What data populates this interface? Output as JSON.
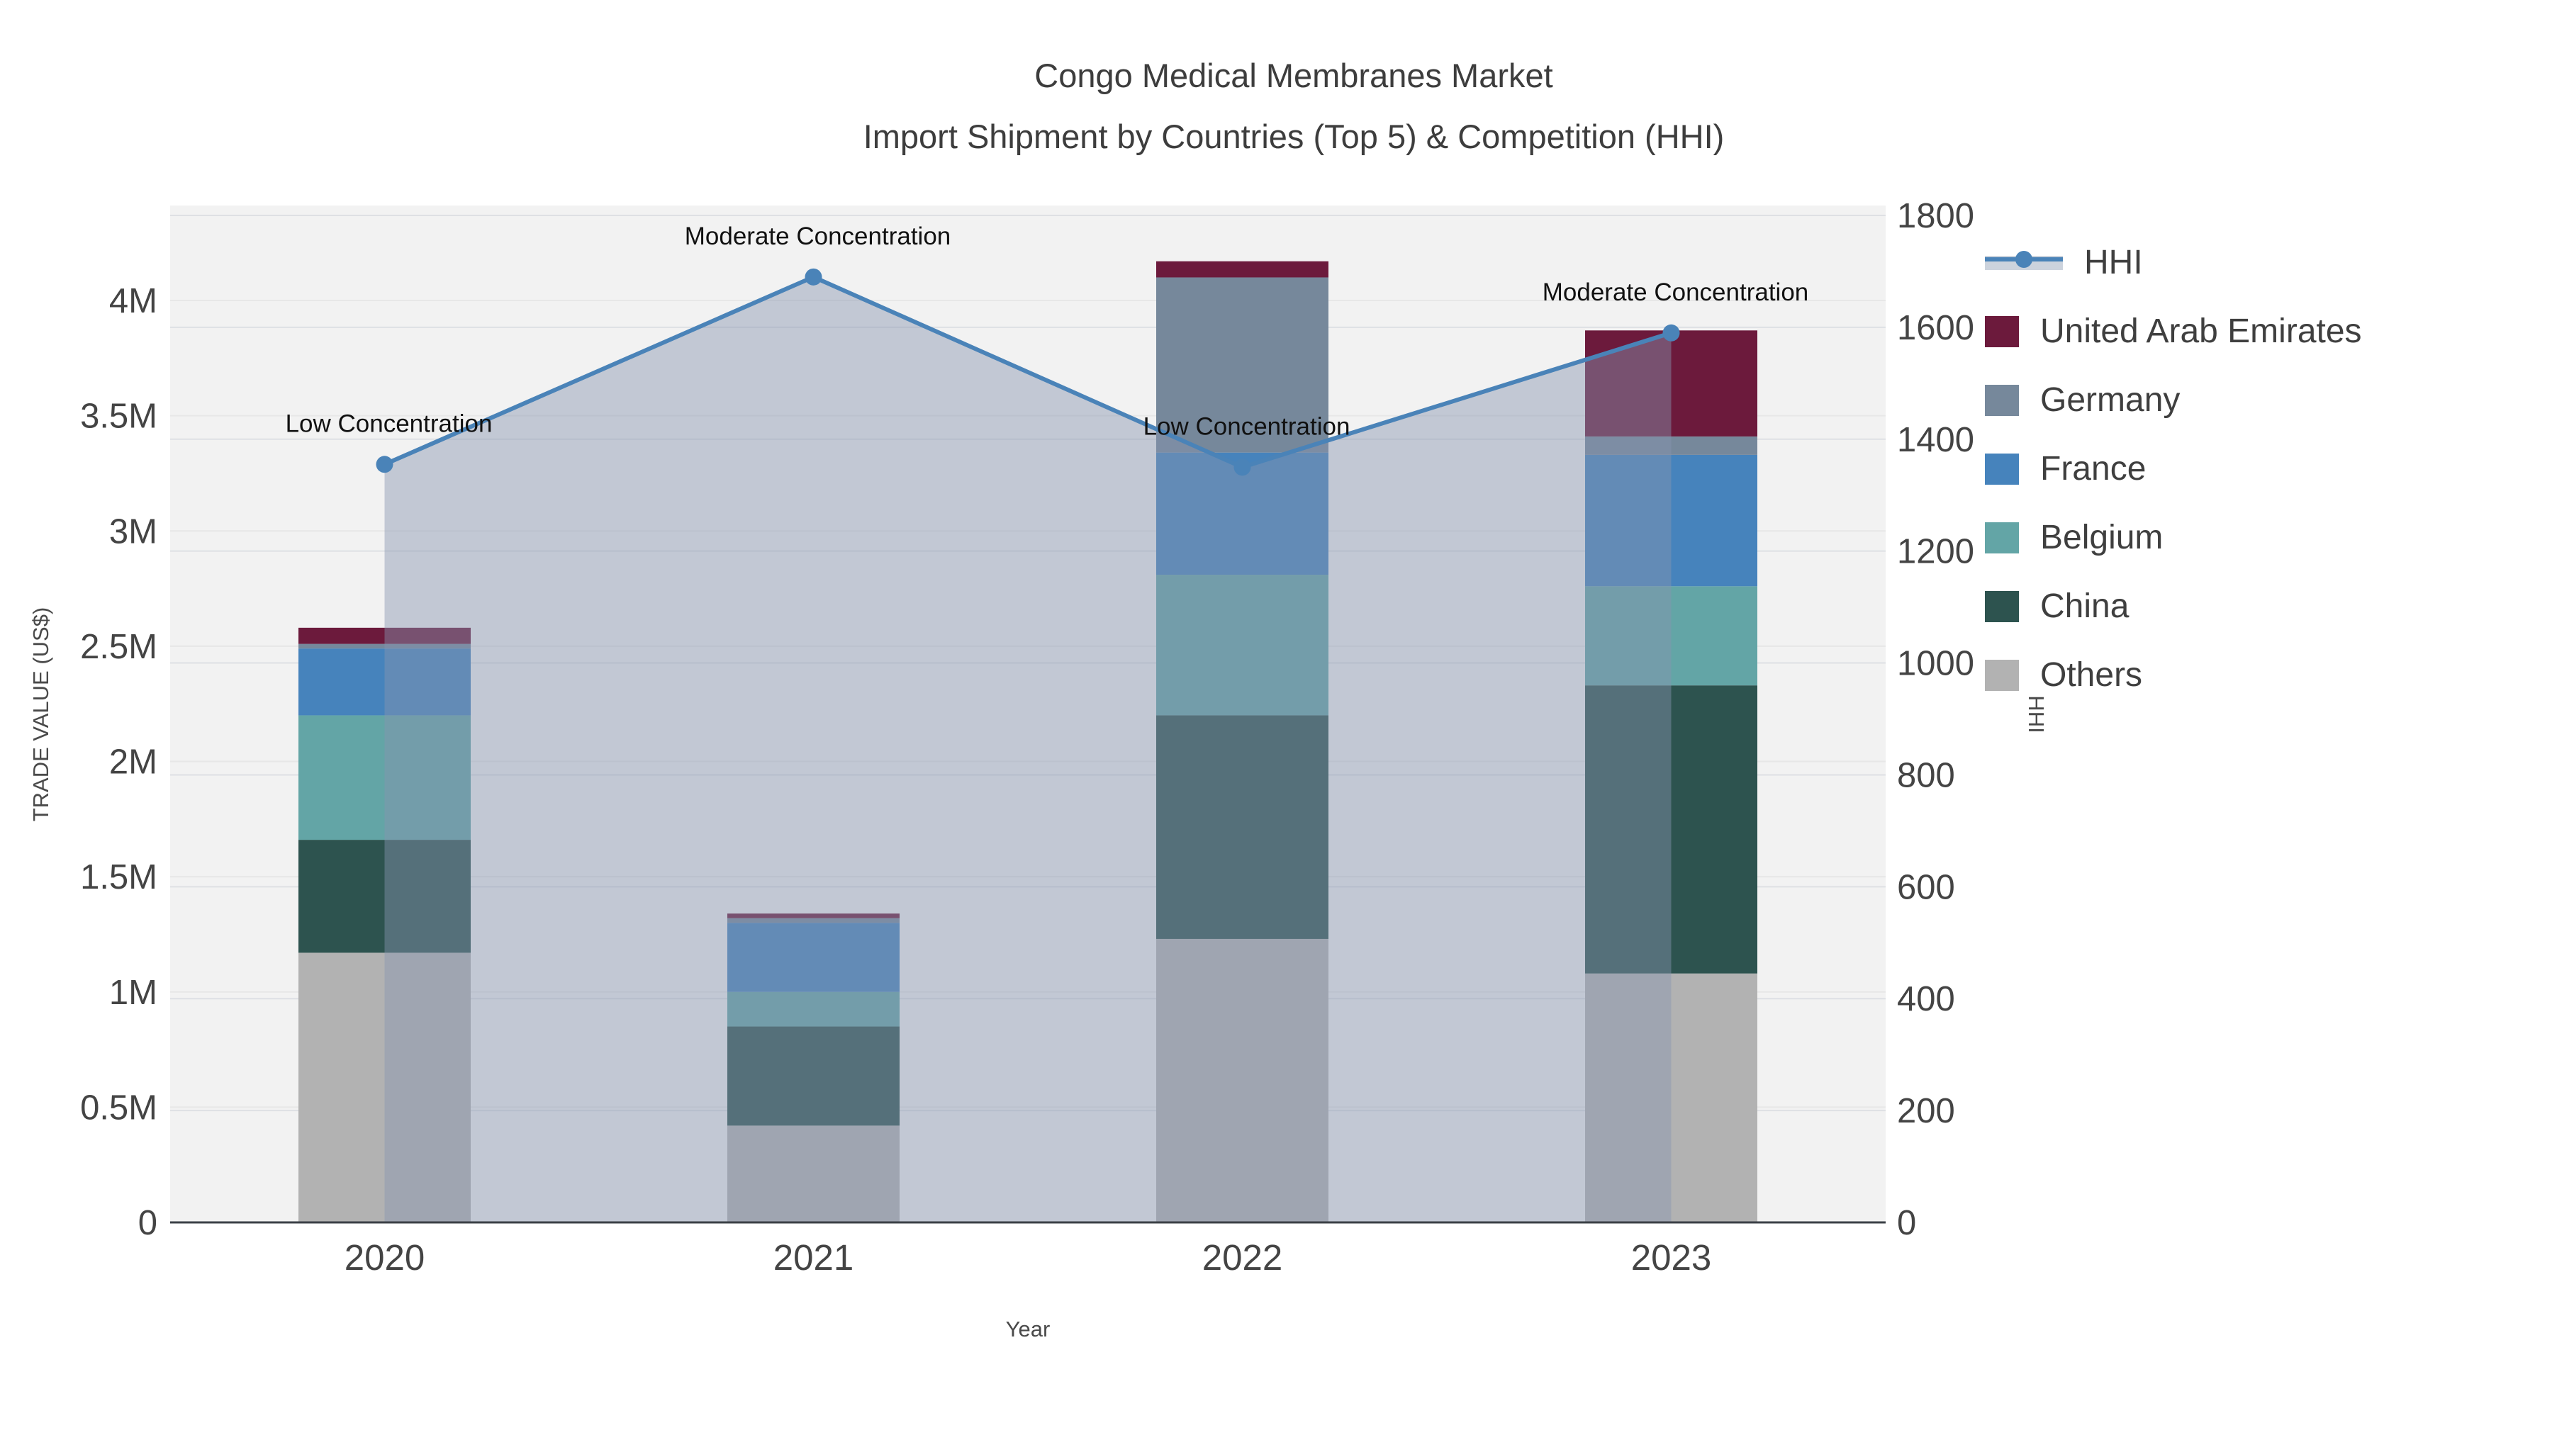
{
  "title": {
    "line1": "Congo Medical Membranes Market",
    "line2": "Import Shipment by Countries (Top 5) & Competition (HHI)"
  },
  "axes": {
    "x_title": "Year",
    "y_left_title": "TRADE VALUE (US$)",
    "y_right_title": "HHI",
    "x_ticks": [
      "2020",
      "2021",
      "2022",
      "2023"
    ],
    "y_left_ticks": [
      {
        "label": "0",
        "value": 0
      },
      {
        "label": "0.5M",
        "value": 0.5
      },
      {
        "label": "1M",
        "value": 1
      },
      {
        "label": "1.5M",
        "value": 1.5
      },
      {
        "label": "2M",
        "value": 2
      },
      {
        "label": "2.5M",
        "value": 2.5
      },
      {
        "label": "3M",
        "value": 3
      },
      {
        "label": "3.5M",
        "value": 3.5
      },
      {
        "label": "4M",
        "value": 4
      }
    ],
    "y_right_ticks": [
      {
        "label": "0",
        "value": 0
      },
      {
        "label": "200",
        "value": 200
      },
      {
        "label": "400",
        "value": 400
      },
      {
        "label": "600",
        "value": 600
      },
      {
        "label": "800",
        "value": 800
      },
      {
        "label": "1000",
        "value": 1000
      },
      {
        "label": "1200",
        "value": 1200
      },
      {
        "label": "1400",
        "value": 1400
      },
      {
        "label": "1600",
        "value": 1600
      },
      {
        "label": "1800",
        "value": 1800
      }
    ]
  },
  "chart_data": {
    "type": "combo: stacked-bar + area-line",
    "categories": [
      "2020",
      "2021",
      "2022",
      "2023"
    ],
    "value_unit": "trade value, US$ millions",
    "series": [
      {
        "name": "Others",
        "color": "#B2B2B2",
        "values": [
          1.17,
          0.42,
          1.23,
          1.08
        ]
      },
      {
        "name": "China",
        "color": "#2D534F",
        "values": [
          0.49,
          0.43,
          0.97,
          1.25
        ]
      },
      {
        "name": "Belgium",
        "color": "#63A5A6",
        "values": [
          0.54,
          0.15,
          0.61,
          0.43
        ]
      },
      {
        "name": "France",
        "color": "#4683BC",
        "values": [
          0.29,
          0.3,
          0.53,
          0.57
        ]
      },
      {
        "name": "Germany",
        "color": "#76889B",
        "values": [
          0.02,
          0.02,
          0.76,
          0.08
        ]
      },
      {
        "name": "United Arab Emirates",
        "color": "#6C1A3C",
        "values": [
          0.07,
          0.02,
          0.07,
          0.46
        ]
      }
    ],
    "totals": [
      2.58,
      1.34,
      4.17,
      3.87
    ],
    "hhi_line": {
      "name": "HHI",
      "values": [
        1355,
        1690,
        1350,
        1590
      ],
      "line_color": "#4A83B8",
      "marker_color": "#4A83B8",
      "area_fill": "rgba(136,149,176,0.45)"
    },
    "annotations": [
      {
        "category": "2020",
        "text": "Low Concentration"
      },
      {
        "category": "2021",
        "text": "Moderate Concentration"
      },
      {
        "category": "2022",
        "text": "Low Concentration"
      },
      {
        "category": "2023",
        "text": "Moderate Concentration"
      }
    ],
    "ylim_left": [
      0,
      4.41
    ],
    "ylim_right": [
      0,
      1817
    ],
    "grid": true,
    "legend_position": "right"
  },
  "legend": {
    "items": [
      {
        "label": "HHI",
        "type": "line",
        "color": "#4A83B8",
        "band": "#CCD3DD"
      },
      {
        "label": "United Arab Emirates",
        "type": "swatch",
        "color": "#6C1A3C"
      },
      {
        "label": "Germany",
        "type": "swatch",
        "color": "#76889B"
      },
      {
        "label": "France",
        "type": "swatch",
        "color": "#4683BC"
      },
      {
        "label": "Belgium",
        "type": "swatch",
        "color": "#63A5A6"
      },
      {
        "label": "China",
        "type": "swatch",
        "color": "#2D534F"
      },
      {
        "label": "Others",
        "type": "swatch",
        "color": "#B2B2B2"
      }
    ]
  },
  "colors": {
    "plot_bg": "#F2F2F2",
    "grid_left": "#E7E7E7",
    "grid_right": "#DEE0E4",
    "axis_line": "#3B4046",
    "tick_text": "#444444",
    "annotation_text": "#111111"
  }
}
